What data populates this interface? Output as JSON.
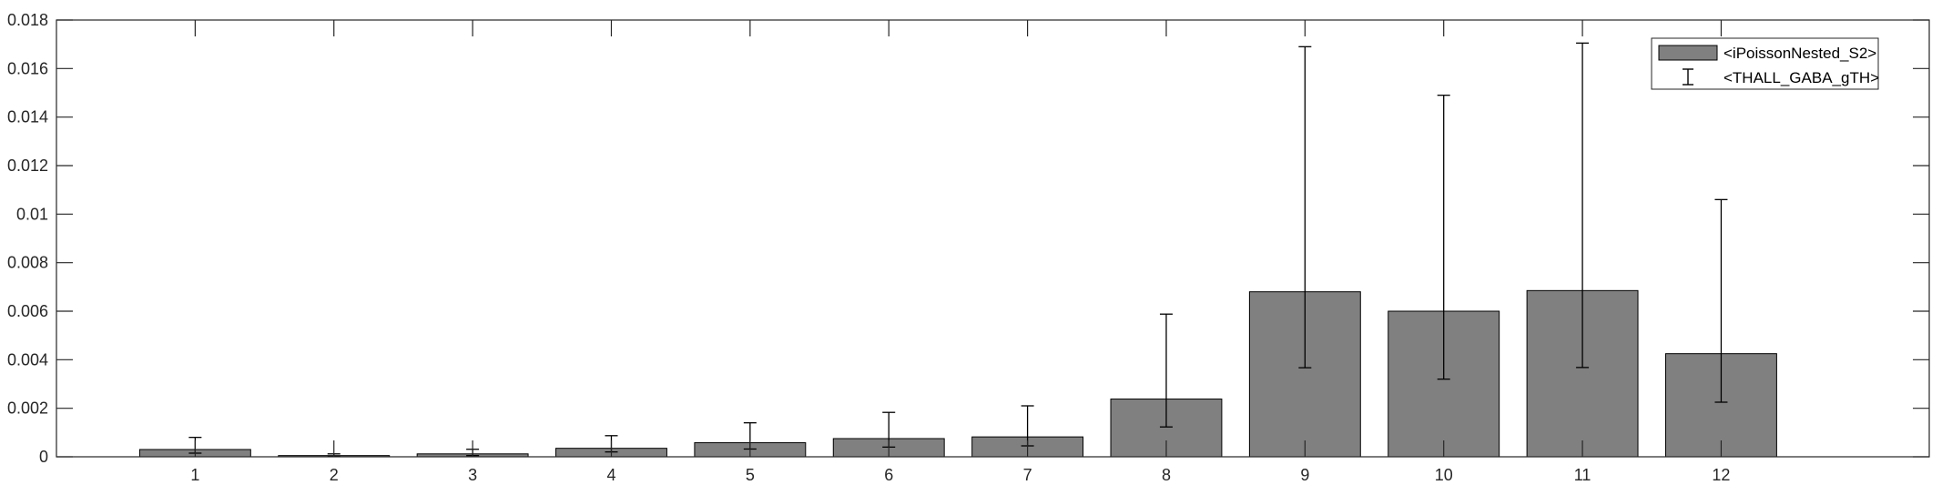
{
  "chart_data": {
    "type": "bar",
    "categories": [
      "1",
      "2",
      "3",
      "4",
      "5",
      "6",
      "7",
      "8",
      "9",
      "10",
      "11",
      "12"
    ],
    "xlim": [
      0,
      13.5
    ],
    "ylim": [
      0,
      0.018
    ],
    "yticks": [
      0,
      0.002,
      0.004,
      0.006,
      0.008,
      0.01,
      0.012,
      0.014,
      0.016,
      0.018
    ],
    "ytick_labels": [
      "0",
      "0.002",
      "0.004",
      "0.006",
      "0.008",
      "0.01",
      "0.012",
      "0.014",
      "0.016",
      "0.018"
    ],
    "series": [
      {
        "name": "<iPoissonNested_S2>",
        "values": [
          0.0003,
          5e-05,
          0.00012,
          0.00035,
          0.00058,
          0.00075,
          0.00082,
          0.00238,
          0.0068,
          0.006,
          0.00685,
          0.00425
        ]
      }
    ],
    "error_bars": {
      "name": "<THALL_GABA_gTH>",
      "lower": [
        0.00015,
        2e-05,
        5e-05,
        0.0002,
        0.00032,
        0.0004,
        0.00045,
        0.00123,
        0.00367,
        0.0032,
        0.00368,
        0.00225
      ],
      "upper": [
        0.0008,
        0.00012,
        0.00031,
        0.00087,
        0.0014,
        0.00183,
        0.0021,
        0.00588,
        0.0169,
        0.0149,
        0.01705,
        0.0106
      ]
    },
    "bar_color": "#808080",
    "grid": false,
    "legend_position": "top-right"
  }
}
